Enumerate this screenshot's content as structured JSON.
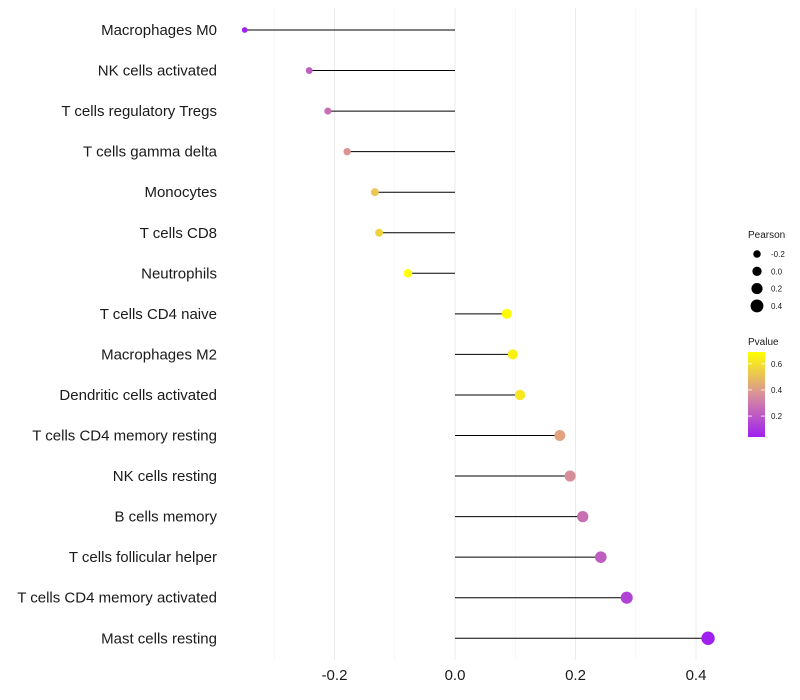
{
  "chart_data": {
    "type": "lollipop",
    "title": "",
    "xlabel": "",
    "ylabel": "",
    "xlim": [
      -0.37,
      0.45
    ],
    "x_ticks": [
      -0.2,
      0.0,
      0.2,
      0.4
    ],
    "x_tick_labels": [
      "-0.2",
      "0.0",
      "0.2",
      "0.4"
    ],
    "grid": true,
    "categories": [
      "Macrophages M0",
      "NK cells activated",
      "T cells regulatory  Tregs",
      "T cells gamma delta",
      "Monocytes",
      "T cells CD8",
      "Neutrophils",
      "T cells CD4 naive",
      "Macrophages M2",
      "Dendritic cells activated",
      "T cells CD4 memory resting",
      "NK cells resting",
      "B cells memory",
      "T cells follicular helper",
      "T cells CD4 memory activated",
      "Mast cells resting"
    ],
    "pearson": [
      -0.349,
      -0.242,
      -0.211,
      -0.179,
      -0.133,
      -0.126,
      -0.078,
      0.086,
      0.096,
      0.108,
      0.174,
      0.191,
      0.212,
      0.242,
      0.285,
      0.42
    ],
    "pvalue": [
      0.04,
      0.22,
      0.27,
      0.38,
      0.52,
      0.56,
      0.69,
      0.68,
      0.65,
      0.62,
      0.42,
      0.36,
      0.27,
      0.22,
      0.14,
      0.04
    ],
    "legend_size": {
      "title": "Pearson",
      "values": [
        -0.2,
        0.0,
        0.2,
        0.4
      ],
      "labels": [
        "-0.2",
        "0.0",
        "0.2",
        "0.4"
      ]
    },
    "legend_color": {
      "title": "Pvalue",
      "range": [
        0.04,
        0.69
      ],
      "ticks": [
        0.2,
        0.4,
        0.6
      ],
      "labels": [
        "0.2",
        "0.4",
        "0.6"
      ],
      "low_color": "#A020F0",
      "mid_color": "#D8909A",
      "high_color": "#FFFF00"
    },
    "legend_placement": "right"
  }
}
